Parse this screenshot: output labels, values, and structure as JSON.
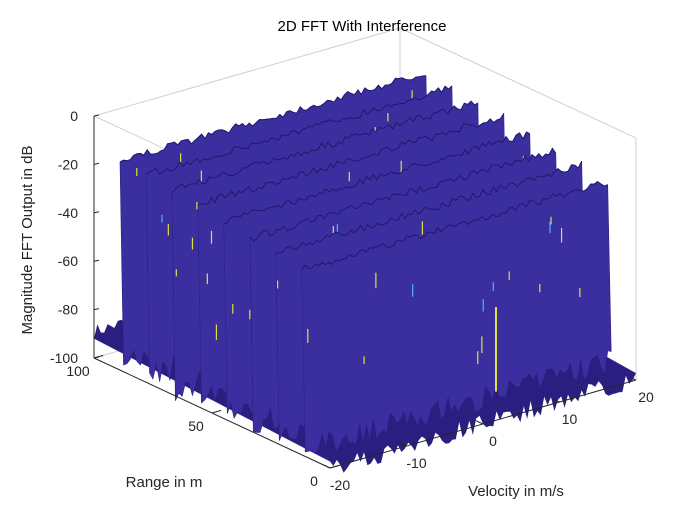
{
  "chart_data": {
    "type": "surface",
    "title": "2D FFT With Interference",
    "zlabel": "Magnitude FFT Output in dB",
    "xlabel": "Velocity in m/s",
    "ylabel": "Range in m",
    "xlim": [
      -20,
      20
    ],
    "ylim": [
      0,
      100
    ],
    "zlim": [
      -100,
      0
    ],
    "x_ticks": [
      -20,
      -10,
      0,
      10,
      20
    ],
    "y_ticks": [
      0,
      50,
      100
    ],
    "z_ticks": [
      0,
      -20,
      -40,
      -60,
      -80,
      -100
    ],
    "noise_floor_db": -92,
    "ridges": [
      {
        "range_m": 12,
        "peak_db": -22
      },
      {
        "range_m": 23,
        "peak_db": -20
      },
      {
        "range_m": 34,
        "peak_db": -19
      },
      {
        "range_m": 45,
        "peak_db": -17
      },
      {
        "range_m": 56,
        "peak_db": -15
      },
      {
        "range_m": 67,
        "peak_db": -14
      },
      {
        "range_m": 78,
        "peak_db": -13
      },
      {
        "range_m": 89,
        "peak_db": -12
      }
    ],
    "colors": {
      "surface": "#3b2fa0",
      "surface_dark": "#2a1f80",
      "highlight": "#e0e040",
      "highlight_alt": "#4ab8e8"
    }
  }
}
